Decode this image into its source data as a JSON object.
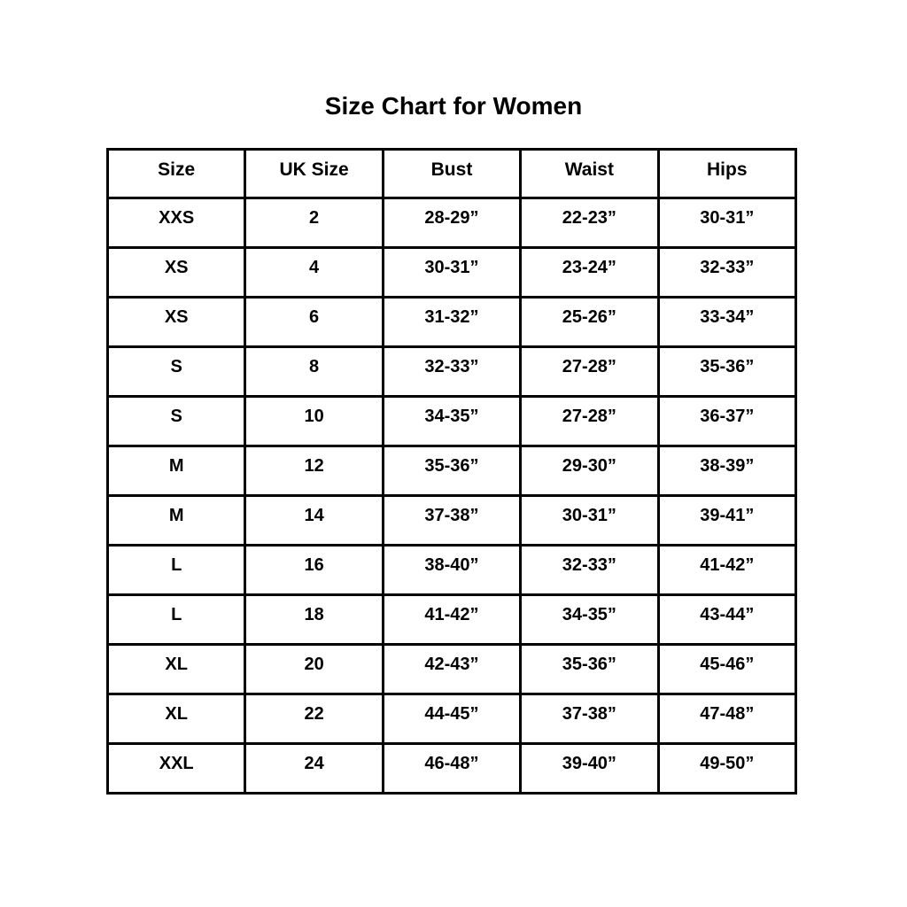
{
  "title": "Size Chart for Women",
  "colors": {
    "background": "#ffffff",
    "border": "#000000",
    "text": "#000000"
  },
  "chart_data": {
    "type": "table",
    "title": "Size Chart for Women",
    "columns": [
      "Size",
      "UK Size",
      "Bust",
      "Waist",
      "Hips"
    ],
    "rows": [
      [
        "XXS",
        "2",
        "28-29”",
        "22-23”",
        "30-31”"
      ],
      [
        "XS",
        "4",
        "30-31”",
        "23-24”",
        "32-33”"
      ],
      [
        "XS",
        "6",
        "31-32”",
        "25-26”",
        "33-34”"
      ],
      [
        "S",
        "8",
        "32-33”",
        "27-28”",
        "35-36”"
      ],
      [
        "S",
        "10",
        "34-35”",
        "27-28”",
        "36-37”"
      ],
      [
        "M",
        "12",
        "35-36”",
        "29-30”",
        "38-39”"
      ],
      [
        "M",
        "14",
        "37-38”",
        "30-31”",
        "39-41”"
      ],
      [
        "L",
        "16",
        "38-40”",
        "32-33”",
        "41-42”"
      ],
      [
        "L",
        "18",
        "41-42”",
        "34-35”",
        "43-44”"
      ],
      [
        "XL",
        "20",
        "42-43”",
        "35-36”",
        "45-46”"
      ],
      [
        "XL",
        "22",
        "44-45”",
        "37-38”",
        "47-48”"
      ],
      [
        "XXL",
        "24",
        "46-48”",
        "39-40”",
        "49-50”"
      ]
    ]
  }
}
